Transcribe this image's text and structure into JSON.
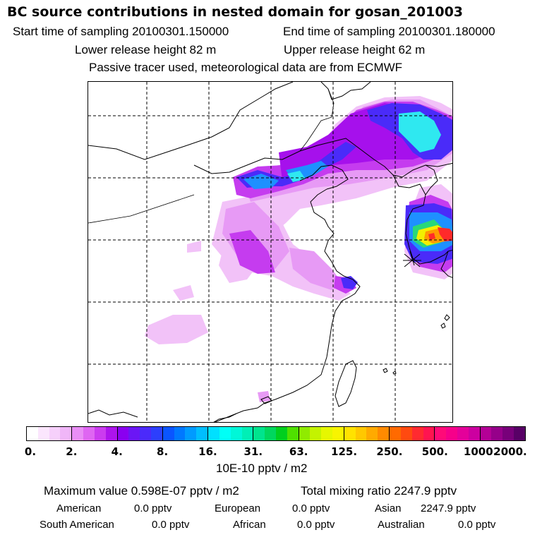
{
  "title": "BC  source contributions in nested domain for gosan_201003",
  "header": {
    "start_label": "Start time of sampling 20100301.150000",
    "end_label": "End time of sampling 20100301.180000",
    "lower_label": "Lower release height   82 m",
    "upper_label": "Upper release height   62 m",
    "tracer_label": "Passive tracer used, meteorological data are from ECMWF"
  },
  "colorbar": {
    "ticks": [
      "0.",
      "2.",
      "4.",
      "8.",
      "16.",
      "31.",
      "63.",
      "125.",
      "250.",
      "500.",
      "1000.",
      "2000."
    ],
    "colors": [
      [
        "#ffffff",
        "#fbe6fd",
        "#f6d0fb",
        "#f0b6f8"
      ],
      [
        "#e98ef5",
        "#df66f2",
        "#cb3cef",
        "#ad14ec"
      ],
      [
        "#8a00f0",
        "#6b16f5",
        "#4b2afa",
        "#2d3ffd"
      ],
      [
        "#0a55ff",
        "#0078ff",
        "#009bff",
        "#00beff"
      ],
      [
        "#00e0ff",
        "#00fff6",
        "#00f7d8",
        "#00efb6"
      ],
      [
        "#00e48e",
        "#00d75e",
        "#00cf1e",
        "#4fe000"
      ],
      [
        "#90eb00",
        "#c4f300",
        "#e6f700",
        "#f8f400"
      ],
      [
        "#ffe200",
        "#ffc800",
        "#ffaa00",
        "#ff8a00"
      ],
      [
        "#ff6a00",
        "#ff4a10",
        "#ff2a30",
        "#ff1450"
      ],
      [
        "#ff0a78",
        "#f6008a",
        "#e4009a",
        "#cc00a0"
      ],
      [
        "#b40096",
        "#96008a",
        "#78007a",
        "#580066"
      ]
    ],
    "units": "10E-10 pptv / m2"
  },
  "stats": {
    "max_value": "Maximum value  0.598E-07 pptv / m2",
    "total_mixing": "Total mixing ratio      2247.9 pptv",
    "american_label": "American",
    "american_value": "0.0 pptv",
    "european_label": "European",
    "european_value": "0.0 pptv",
    "asian_label": "Asian",
    "asian_value": "2247.9 pptv",
    "south_american_label": "South American",
    "south_american_value": "0.0 pptv",
    "african_label": "African",
    "african_value": "0.0 pptv",
    "australian_label": "Australian",
    "australian_value": "0.0 pptv"
  },
  "map": {
    "projection": "lat-lon grid",
    "receptor": "Gosan",
    "plume_colors": {
      "light": "#f2c2f8",
      "pink": "#e79af5",
      "violet": "#c53cef",
      "purple": "#a610ec",
      "blue": "#4a2bf9",
      "midblue": "#1e90ff",
      "cyan": "#2fe8f0",
      "green": "#28d87a",
      "yellow": "#f2f000",
      "orange": "#ff9a00",
      "red": "#ff2a2a"
    }
  }
}
